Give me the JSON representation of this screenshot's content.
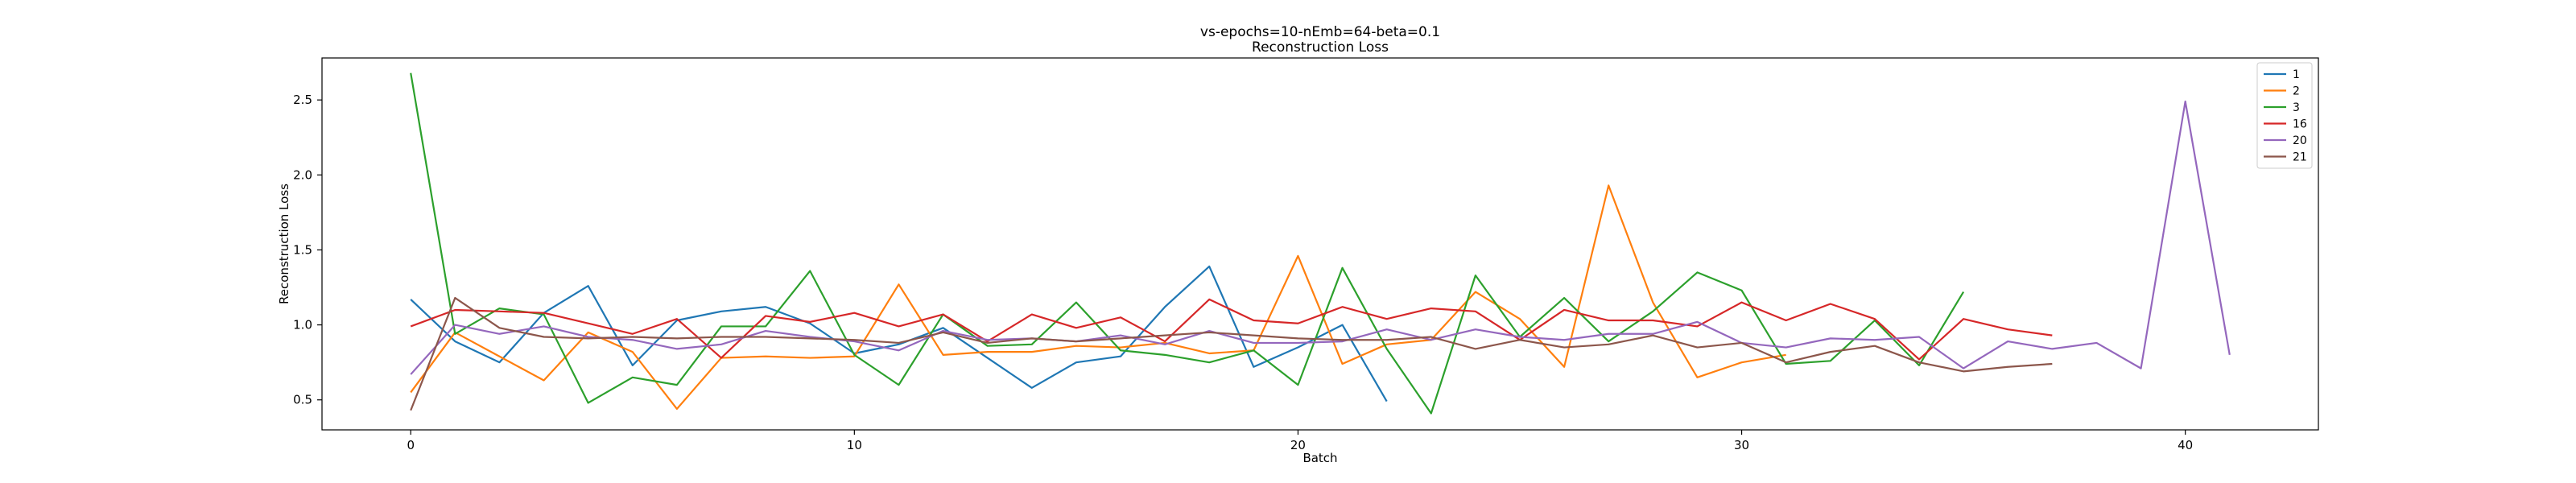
{
  "chart_data": {
    "type": "line",
    "title": "vs-epochs=10-nEmb=64-beta=0.1",
    "subtitle": "Reconstruction Loss",
    "xlabel": "Batch",
    "ylabel": "Reconstruction Loss",
    "xlim": [
      -2,
      43
    ],
    "ylim": [
      0.3,
      2.78
    ],
    "xticks": [
      0,
      10,
      20,
      30,
      40
    ],
    "yticks": [
      0.5,
      1.0,
      1.5,
      2.0,
      2.5
    ],
    "grid": false,
    "legend_position": "top-right",
    "series": [
      {
        "name": "1",
        "color": "#1f77b4",
        "x_start": 0,
        "values": [
          1.17,
          0.89,
          0.75,
          1.08,
          1.26,
          0.73,
          1.03,
          1.09,
          1.12,
          1.01,
          0.81,
          0.87,
          0.98,
          0.78,
          0.58,
          0.75,
          0.79,
          1.12,
          1.39,
          0.72,
          0.85,
          1.0,
          0.49
        ]
      },
      {
        "name": "2",
        "color": "#ff7f0e",
        "x_start": 0,
        "values": [
          0.55,
          0.95,
          0.79,
          0.63,
          0.95,
          0.82,
          0.44,
          0.78,
          0.79,
          0.78,
          0.79,
          1.27,
          0.8,
          0.82,
          0.82,
          0.86,
          0.85,
          0.88,
          0.81,
          0.83,
          1.46,
          0.74,
          0.87,
          0.9,
          1.22,
          1.04,
          0.72,
          1.93,
          1.15,
          0.65,
          0.75,
          0.8
        ]
      },
      {
        "name": "3",
        "color": "#2ca02c",
        "x_start": 0,
        "values": [
          2.68,
          0.94,
          1.11,
          1.07,
          0.48,
          0.65,
          0.6,
          0.99,
          0.99,
          1.36,
          0.8,
          0.6,
          1.07,
          0.86,
          0.87,
          1.15,
          0.83,
          0.8,
          0.75,
          0.83,
          0.6,
          1.38,
          0.84,
          0.41,
          1.33,
          0.92,
          1.18,
          0.89,
          1.09,
          1.35,
          1.23,
          0.74,
          0.76,
          1.03,
          0.73,
          1.22
        ]
      },
      {
        "name": "16",
        "color": "#d62728",
        "x_start": 0,
        "values": [
          0.99,
          1.1,
          1.09,
          1.08,
          1.01,
          0.94,
          1.04,
          0.78,
          1.06,
          1.02,
          1.08,
          0.99,
          1.07,
          0.89,
          1.07,
          0.98,
          1.05,
          0.89,
          1.17,
          1.03,
          1.01,
          1.12,
          1.04,
          1.11,
          1.09,
          0.9,
          1.1,
          1.03,
          1.03,
          0.99,
          1.15,
          1.03,
          1.14,
          1.04,
          0.77,
          1.04,
          0.97,
          0.93
        ]
      },
      {
        "name": "20",
        "color": "#9467bd",
        "x_start": 0,
        "values": [
          0.67,
          1.0,
          0.94,
          0.99,
          0.92,
          0.9,
          0.84,
          0.87,
          0.96,
          0.92,
          0.89,
          0.83,
          0.96,
          0.9,
          0.91,
          0.89,
          0.93,
          0.87,
          0.96,
          0.88,
          0.88,
          0.89,
          0.97,
          0.9,
          0.97,
          0.92,
          0.9,
          0.94,
          0.94,
          1.02,
          0.88,
          0.85,
          0.91,
          0.9,
          0.92,
          0.71,
          0.89,
          0.84,
          0.88,
          0.71,
          2.49,
          0.8
        ]
      },
      {
        "name": "21",
        "color": "#8c564b",
        "x_start": 0,
        "values": [
          0.43,
          1.18,
          0.98,
          0.92,
          0.91,
          0.92,
          0.91,
          0.92,
          0.92,
          0.91,
          0.9,
          0.88,
          0.95,
          0.88,
          0.91,
          0.89,
          0.91,
          0.93,
          0.95,
          0.93,
          0.91,
          0.9,
          0.9,
          0.92,
          0.84,
          0.9,
          0.85,
          0.87,
          0.93,
          0.85,
          0.88,
          0.75,
          0.82,
          0.86,
          0.75,
          0.69,
          0.72,
          0.74
        ]
      }
    ]
  }
}
